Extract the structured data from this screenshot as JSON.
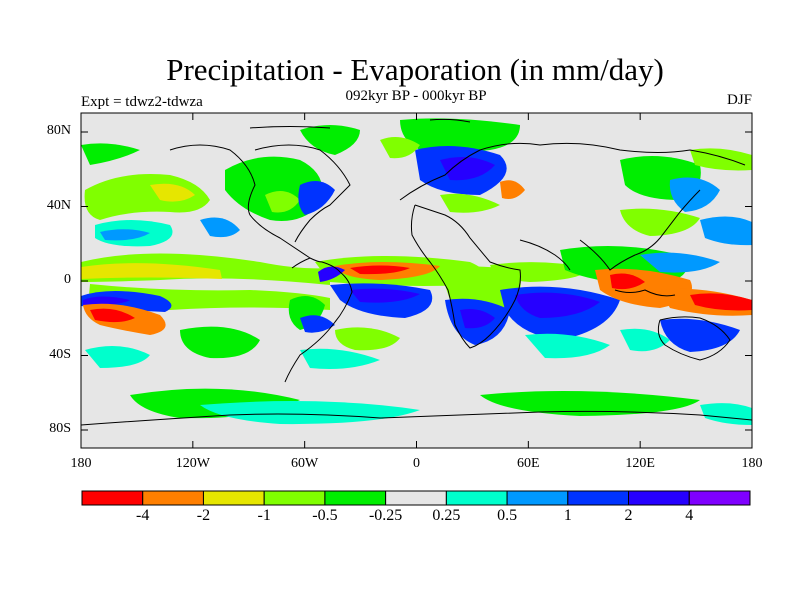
{
  "title": "Precipitation - Evaporation (in mm/day)",
  "subtitle": "092kyr BP - 000kyr BP",
  "experiment_label": "Expt = tdwz2-tdwza",
  "season_label": "DJF",
  "axes": {
    "y_ticks": [
      "80N",
      "40N",
      "0",
      "40S",
      "80S"
    ],
    "x_ticks": [
      "180",
      "120W",
      "60W",
      "0",
      "60E",
      "120E",
      "180"
    ]
  },
  "colorbar": {
    "colors": [
      "#ff0000",
      "#ff7f00",
      "#e6e600",
      "#80ff00",
      "#00ee00",
      "#e6e6e6",
      "#00ffcc",
      "#0099ff",
      "#0033ff",
      "#2600ff",
      "#7f00ff"
    ],
    "labels": [
      "-4",
      "-2",
      "-1",
      "-0.5",
      "-0.25",
      "0.25",
      "0.5",
      "1",
      "2",
      "4"
    ]
  }
}
